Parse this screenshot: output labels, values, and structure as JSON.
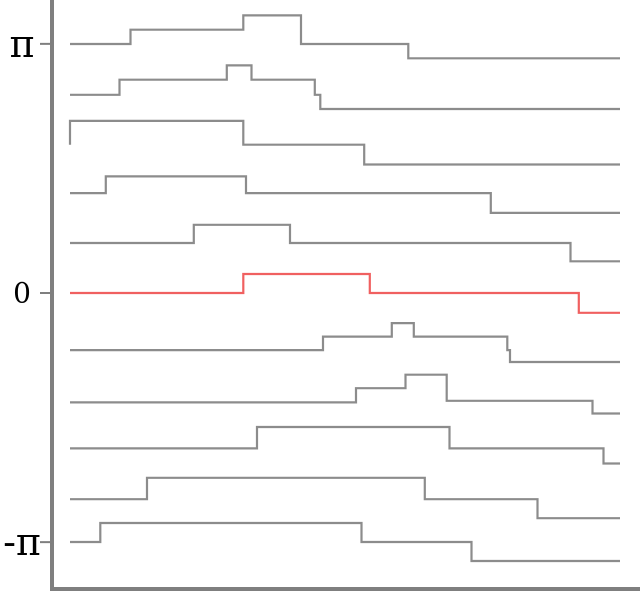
{
  "chart_data": {
    "type": "line",
    "title": "",
    "xlabel": "",
    "ylabel": "",
    "ylim": [
      -3.6,
      3.6
    ],
    "xlim": [
      0,
      10
    ],
    "grid": false,
    "legend": "none",
    "y_ticks": [
      {
        "value": 3.1416,
        "label": "π"
      },
      {
        "value": 0,
        "label": "0"
      },
      {
        "value": -3.1416,
        "label": "-π"
      }
    ],
    "colors": {
      "default": "#8c8c8c",
      "highlight": "#f06060",
      "axis": "#7f7f7f"
    },
    "series": [
      {
        "x": [
          0.0,
          1.1,
          1.1,
          3.15,
          3.15,
          4.2,
          4.2,
          6.15,
          6.15,
          10.0
        ],
        "y": [
          3.14,
          3.14,
          3.32,
          3.32,
          3.5,
          3.5,
          3.14,
          3.14,
          2.96,
          2.96
        ]
      },
      {
        "x": [
          0.0,
          0.9,
          0.9,
          2.85,
          2.85,
          3.3,
          3.3,
          4.45,
          4.45,
          4.55,
          4.55,
          10.0
        ],
        "y": [
          2.5,
          2.5,
          2.69,
          2.69,
          2.87,
          2.87,
          2.69,
          2.69,
          2.5,
          2.5,
          2.32,
          2.32
        ]
      },
      {
        "x": [
          0.0,
          0.0,
          3.15,
          3.15,
          5.35,
          5.35,
          10.0
        ],
        "y": [
          1.87,
          2.17,
          2.17,
          1.87,
          1.87,
          1.62,
          1.62
        ]
      },
      {
        "x": [
          0.0,
          0.65,
          0.65,
          3.2,
          3.2,
          7.65,
          7.65,
          10.0
        ],
        "y": [
          1.26,
          1.26,
          1.47,
          1.47,
          1.26,
          1.26,
          1.01,
          1.01
        ]
      },
      {
        "x": [
          0.0,
          2.25,
          2.25,
          4.0,
          4.0,
          9.1,
          9.1,
          10.0
        ],
        "y": [
          0.63,
          0.63,
          0.86,
          0.86,
          0.63,
          0.63,
          0.4,
          0.4
        ]
      },
      {
        "x": [
          0.0,
          3.15,
          3.15,
          5.45,
          5.45,
          9.25,
          9.25,
          10.0
        ],
        "y": [
          0.0,
          0.0,
          0.24,
          0.24,
          0.0,
          0.0,
          -0.25,
          -0.25
        ]
      },
      {
        "x": [
          0.0,
          4.6,
          4.6,
          5.85,
          5.85,
          6.25,
          6.25,
          7.95,
          7.95,
          8.0,
          8.0,
          10.0
        ],
        "y": [
          -0.72,
          -0.72,
          -0.55,
          -0.55,
          -0.38,
          -0.38,
          -0.55,
          -0.55,
          -0.72,
          -0.72,
          -0.87,
          -0.87
        ]
      },
      {
        "x": [
          0.0,
          5.2,
          5.2,
          6.1,
          6.1,
          6.85,
          6.85,
          9.5,
          9.5,
          10.0
        ],
        "y": [
          -1.38,
          -1.38,
          -1.2,
          -1.2,
          -1.03,
          -1.03,
          -1.36,
          -1.36,
          -1.52,
          -1.52
        ]
      },
      {
        "x": [
          0.0,
          3.4,
          3.4,
          6.9,
          6.9,
          9.7,
          9.7,
          10.0
        ],
        "y": [
          -1.96,
          -1.96,
          -1.69,
          -1.69,
          -1.96,
          -1.96,
          -2.15,
          -2.15
        ]
      },
      {
        "x": [
          0.0,
          1.4,
          1.4,
          6.45,
          6.45,
          8.5,
          8.5,
          10.0
        ],
        "y": [
          -2.6,
          -2.6,
          -2.33,
          -2.33,
          -2.6,
          -2.6,
          -2.84,
          -2.84
        ]
      },
      {
        "x": [
          0.0,
          0.55,
          0.55,
          5.3,
          5.3,
          7.3,
          7.3,
          10.0
        ],
        "y": [
          -3.14,
          -3.14,
          -2.9,
          -2.9,
          -3.14,
          -3.14,
          -3.38,
          -3.38
        ]
      }
    ],
    "highlighted_series_index": 5
  }
}
